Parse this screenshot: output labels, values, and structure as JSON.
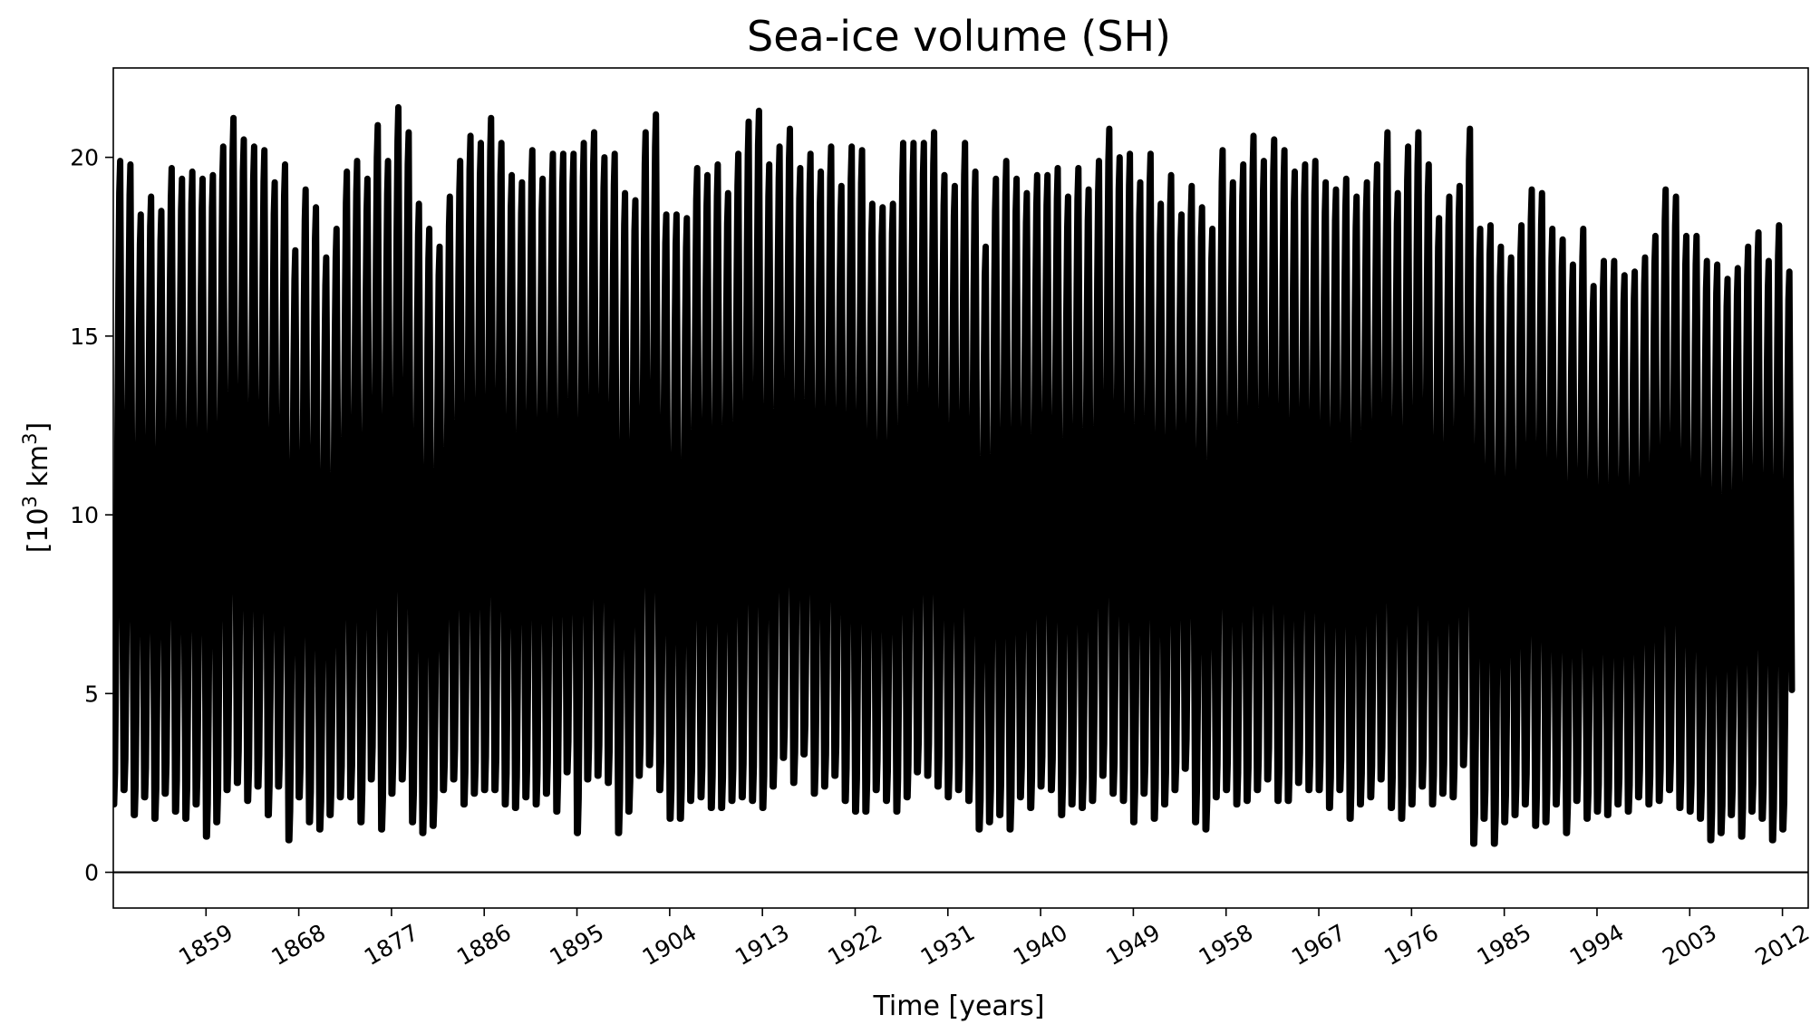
{
  "chart_data": {
    "type": "line",
    "title": "Sea-ice volume (SH)",
    "xlabel": "Time [years]",
    "ylabel": {
      "base": "[10",
      "sup1": "3",
      "mid": " km",
      "sup2": "3",
      "end": "]"
    },
    "xlim": [
      1850,
      2014.5
    ],
    "ylim": [
      -1,
      22.5
    ],
    "xticks": [
      1859,
      1868,
      1877,
      1886,
      1895,
      1904,
      1913,
      1922,
      1931,
      1940,
      1949,
      1958,
      1967,
      1976,
      1985,
      1994,
      2003,
      2012
    ],
    "yticks": [
      0,
      5,
      10,
      15,
      20
    ],
    "hline": 0,
    "grid": false,
    "line_color": "#000000",
    "series": [
      {
        "sampling": "monthly seasonal cycle; annual maximum and minimum listed",
        "x": [
          1850,
          1851,
          1852,
          1853,
          1854,
          1855,
          1856,
          1857,
          1858,
          1859,
          1860,
          1861,
          1862,
          1863,
          1864,
          1865,
          1866,
          1867,
          1868,
          1869,
          1870,
          1871,
          1872,
          1873,
          1874,
          1875,
          1876,
          1877,
          1878,
          1879,
          1880,
          1881,
          1882,
          1883,
          1884,
          1885,
          1886,
          1887,
          1888,
          1889,
          1890,
          1891,
          1892,
          1893,
          1894,
          1895,
          1896,
          1897,
          1898,
          1899,
          1900,
          1901,
          1902,
          1903,
          1904,
          1905,
          1906,
          1907,
          1908,
          1909,
          1910,
          1911,
          1912,
          1913,
          1914,
          1915,
          1916,
          1917,
          1918,
          1919,
          1920,
          1921,
          1922,
          1923,
          1924,
          1925,
          1926,
          1927,
          1928,
          1929,
          1930,
          1931,
          1932,
          1933,
          1934,
          1935,
          1936,
          1937,
          1938,
          1939,
          1940,
          1941,
          1942,
          1943,
          1944,
          1945,
          1946,
          1947,
          1948,
          1949,
          1950,
          1951,
          1952,
          1953,
          1954,
          1955,
          1956,
          1957,
          1958,
          1959,
          1960,
          1961,
          1962,
          1963,
          1964,
          1965,
          1966,
          1967,
          1968,
          1969,
          1970,
          1971,
          1972,
          1973,
          1974,
          1975,
          1976,
          1977,
          1978,
          1979,
          1980,
          1981,
          1982,
          1983,
          1984,
          1985,
          1986,
          1987,
          1988,
          1989,
          1990,
          1991,
          1992,
          1993,
          1994,
          1995,
          1996,
          1997,
          1998,
          1999,
          2000,
          2001,
          2002,
          2003,
          2004,
          2005,
          2006,
          2007,
          2008,
          2009,
          2010,
          2011,
          2012,
          2013,
          2014
        ],
        "annual_max": [
          19.9,
          19.8,
          18.4,
          18.9,
          18.5,
          19.7,
          19.4,
          19.6,
          19.4,
          19.5,
          20.3,
          21.1,
          20.5,
          20.3,
          20.2,
          19.3,
          19.8,
          17.4,
          19.1,
          18.6,
          17.2,
          18.0,
          19.6,
          19.9,
          19.4,
          20.9,
          19.9,
          21.4,
          20.7,
          18.7,
          18.0,
          17.5,
          18.9,
          19.9,
          20.6,
          20.4,
          21.1,
          20.4,
          19.5,
          19.3,
          20.2,
          19.4,
          20.1,
          20.1,
          20.1,
          20.4,
          20.7,
          20.0,
          20.1,
          19.0,
          18.8,
          20.7,
          21.2,
          18.4,
          18.4,
          18.3,
          19.7,
          19.5,
          19.8,
          19.0,
          20.1,
          21.0,
          21.3,
          19.8,
          20.3,
          20.8,
          19.7,
          20.1,
          19.6,
          20.3,
          19.2,
          20.3,
          20.2,
          18.7,
          18.6,
          18.7,
          20.4,
          20.4,
          20.4,
          20.7,
          19.5,
          19.2,
          20.4,
          19.6,
          17.5,
          19.4,
          19.9,
          19.4,
          19.0,
          19.5,
          19.5,
          19.7,
          18.9,
          19.7,
          19.1,
          19.9,
          20.8,
          20.0,
          20.1,
          19.3,
          20.1,
          18.7,
          19.5,
          18.4,
          19.2,
          18.6,
          18.0,
          20.2,
          19.3,
          19.8,
          20.6,
          19.9,
          20.5,
          20.2,
          19.6,
          19.8,
          19.9,
          19.3,
          19.1,
          19.4,
          18.9,
          19.3,
          19.8,
          20.7,
          19.0,
          20.3,
          20.7,
          19.8,
          18.3,
          18.9,
          19.2,
          20.8,
          18.0,
          18.1,
          17.5,
          17.2,
          18.1,
          19.1,
          19.0,
          18.0,
          17.7,
          17.0,
          18.0,
          16.4,
          17.1,
          17.1,
          16.7,
          16.8,
          17.2,
          17.8,
          19.1,
          18.9,
          17.8,
          17.8,
          17.1,
          17.0,
          16.6,
          16.9,
          17.5,
          17.9,
          17.1,
          18.1,
          16.8
        ],
        "annual_min": [
          1.9,
          2.3,
          1.6,
          2.1,
          1.5,
          2.2,
          1.7,
          1.5,
          1.9,
          1.0,
          1.4,
          2.3,
          2.5,
          2.0,
          2.4,
          1.6,
          2.4,
          0.9,
          2.1,
          1.4,
          1.2,
          1.6,
          2.1,
          2.1,
          1.4,
          2.6,
          1.2,
          2.2,
          2.6,
          1.4,
          1.1,
          1.3,
          2.3,
          2.6,
          1.9,
          2.2,
          2.3,
          2.3,
          1.9,
          1.8,
          2.1,
          1.9,
          2.2,
          1.7,
          2.8,
          1.1,
          2.6,
          2.7,
          2.5,
          1.1,
          1.7,
          2.7,
          3.0,
          2.3,
          1.5,
          1.5,
          2.0,
          2.1,
          1.8,
          1.8,
          2.0,
          2.1,
          2.0,
          1.8,
          2.4,
          3.2,
          2.5,
          3.3,
          2.2,
          2.4,
          2.7,
          2.0,
          1.7,
          1.7,
          2.3,
          2.0,
          1.7,
          2.1,
          2.8,
          2.7,
          2.4,
          2.1,
          2.3,
          2.0,
          1.2,
          1.4,
          1.6,
          1.2,
          2.1,
          1.8,
          2.4,
          2.3,
          1.6,
          1.9,
          1.8,
          2.0,
          2.7,
          2.2,
          2.0,
          1.4,
          2.2,
          1.5,
          1.9,
          2.3,
          2.9,
          1.4,
          1.2,
          2.1,
          2.3,
          1.9,
          2.0,
          2.3,
          2.6,
          2.0,
          2.0,
          2.5,
          2.3,
          2.3,
          1.8,
          2.3,
          1.5,
          1.9,
          2.1,
          2.6,
          1.8,
          1.5,
          1.9,
          2.4,
          1.9,
          2.2,
          2.1,
          3.0,
          0.8,
          1.5,
          0.8,
          1.4,
          1.6,
          1.9,
          1.3,
          1.4,
          1.9,
          1.1,
          2.0,
          1.5,
          1.7,
          1.6,
          1.9,
          1.7,
          2.1,
          1.9,
          2.0,
          2.3,
          1.8,
          1.7,
          1.5,
          0.9,
          1.1,
          1.6,
          1.0,
          1.7,
          1.5,
          0.9,
          1.2
        ]
      }
    ]
  }
}
